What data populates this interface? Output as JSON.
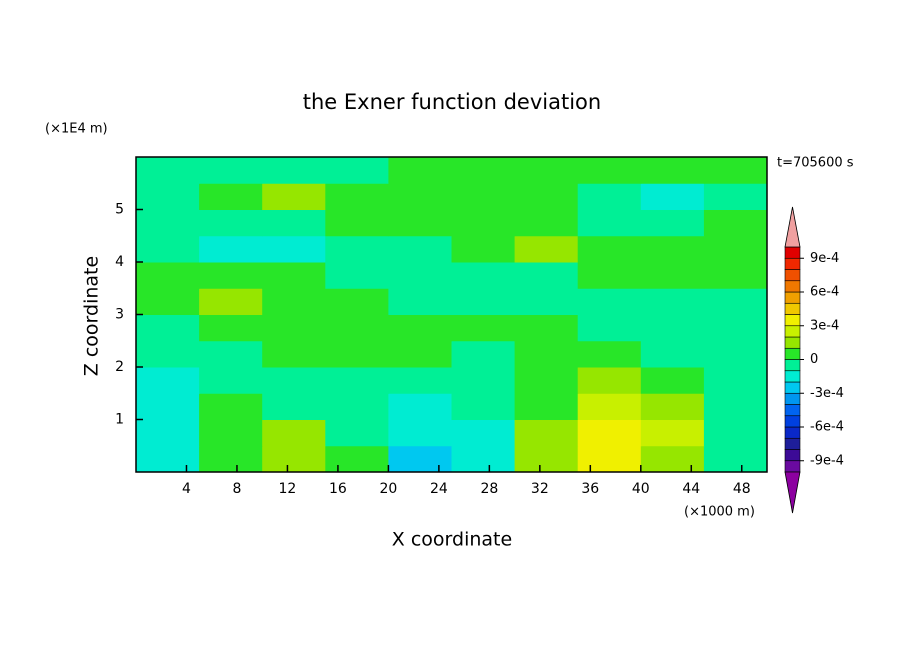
{
  "chart_data": {
    "type": "contour",
    "title": "the Exner function deviation",
    "x_label": "X coordinate",
    "y_label": "Z coordinate",
    "x_unit": "(×1000 m)",
    "y_unit": "(×1E4 m)",
    "time_label": "t=705600 s",
    "xlim": [
      0,
      50
    ],
    "ylim": [
      0,
      6
    ],
    "xticks": [
      4,
      8,
      12,
      16,
      20,
      24,
      28,
      32,
      36,
      40,
      44,
      48
    ],
    "yticks": [
      1,
      2,
      3,
      4,
      5
    ],
    "x": [
      2.5,
      7.5,
      12.5,
      17.5,
      22.5,
      27.5,
      32.5,
      37.5,
      42.5,
      47.5
    ],
    "y": [
      0.25,
      0.75,
      1.25,
      1.75,
      2.25,
      2.75,
      3.25,
      3.75,
      4.25,
      4.75,
      5.25,
      5.75
    ],
    "values": [
      [
        -0.00015,
        5e-05,
        0.00015,
        5e-05,
        -0.00025,
        -0.00015,
        0.00015,
        0.00035,
        0.00015,
        -5e-05
      ],
      [
        -0.00015,
        5e-05,
        0.00015,
        -5e-05,
        -0.00015,
        -0.00015,
        0.00015,
        0.00035,
        0.00025,
        -5e-05
      ],
      [
        -0.00015,
        5e-05,
        -5e-05,
        -5e-05,
        -0.00015,
        -5e-05,
        5e-05,
        0.00025,
        0.00015,
        -5e-05
      ],
      [
        -0.00015,
        -5e-05,
        -5e-05,
        -5e-05,
        -5e-05,
        -5e-05,
        5e-05,
        0.00015,
        5e-05,
        -5e-05
      ],
      [
        -5e-05,
        -5e-05,
        5e-05,
        5e-05,
        5e-05,
        -5e-05,
        5e-05,
        5e-05,
        -5e-05,
        -5e-05
      ],
      [
        -5e-05,
        5e-05,
        5e-05,
        5e-05,
        5e-05,
        5e-05,
        5e-05,
        -5e-05,
        -5e-05,
        -5e-05
      ],
      [
        5e-05,
        0.00015,
        5e-05,
        5e-05,
        -5e-05,
        -5e-05,
        -5e-05,
        -5e-05,
        -5e-05,
        -5e-05
      ],
      [
        5e-05,
        5e-05,
        5e-05,
        -5e-05,
        -5e-05,
        -5e-05,
        -5e-05,
        5e-05,
        5e-05,
        5e-05
      ],
      [
        -5e-05,
        -0.00015,
        -0.00015,
        -5e-05,
        -5e-05,
        5e-05,
        0.00015,
        5e-05,
        5e-05,
        5e-05
      ],
      [
        -5e-05,
        -5e-05,
        -5e-05,
        5e-05,
        5e-05,
        5e-05,
        5e-05,
        -5e-05,
        -5e-05,
        5e-05
      ],
      [
        -5e-05,
        5e-05,
        0.00015,
        5e-05,
        5e-05,
        5e-05,
        5e-05,
        -5e-05,
        -0.00015,
        -5e-05
      ],
      [
        -5e-05,
        -5e-05,
        -5e-05,
        -5e-05,
        5e-05,
        5e-05,
        5e-05,
        5e-05,
        5e-05,
        5e-05
      ]
    ],
    "levels": [
      -0.001,
      -0.0009,
      -0.0008,
      -0.0007,
      -0.0006,
      -0.0005,
      -0.0004,
      -0.0003,
      -0.0002,
      -0.0001,
      0,
      0.0001,
      0.0002,
      0.0003,
      0.0004,
      0.0005,
      0.0006,
      0.0007,
      0.0008,
      0.0009,
      0.001
    ],
    "colors": [
      "#6a0aa0",
      "#3c0a96",
      "#1e1e9a",
      "#0a28c8",
      "#0040e0",
      "#0064f0",
      "#0096f0",
      "#00c8f0",
      "#00ecd2",
      "#00f096",
      "#28e628",
      "#96e600",
      "#c8f000",
      "#f0f000",
      "#f0c800",
      "#f0a000",
      "#f07800",
      "#f05000",
      "#f02800",
      "#e00000"
    ],
    "under_color": "#8c00a0",
    "over_color": "#f0a0a0",
    "cbar_ticks": [
      {
        "value": -0.0009,
        "label": "-9e-4"
      },
      {
        "value": -0.0006,
        "label": "-6e-4"
      },
      {
        "value": -0.0003,
        "label": "-3e-4"
      },
      0,
      {
        "value": 0.0003,
        "label": "3e-4"
      },
      {
        "value": 0.0006,
        "label": "6e-4"
      },
      {
        "value": 0.0009,
        "label": "9e-4"
      }
    ]
  }
}
